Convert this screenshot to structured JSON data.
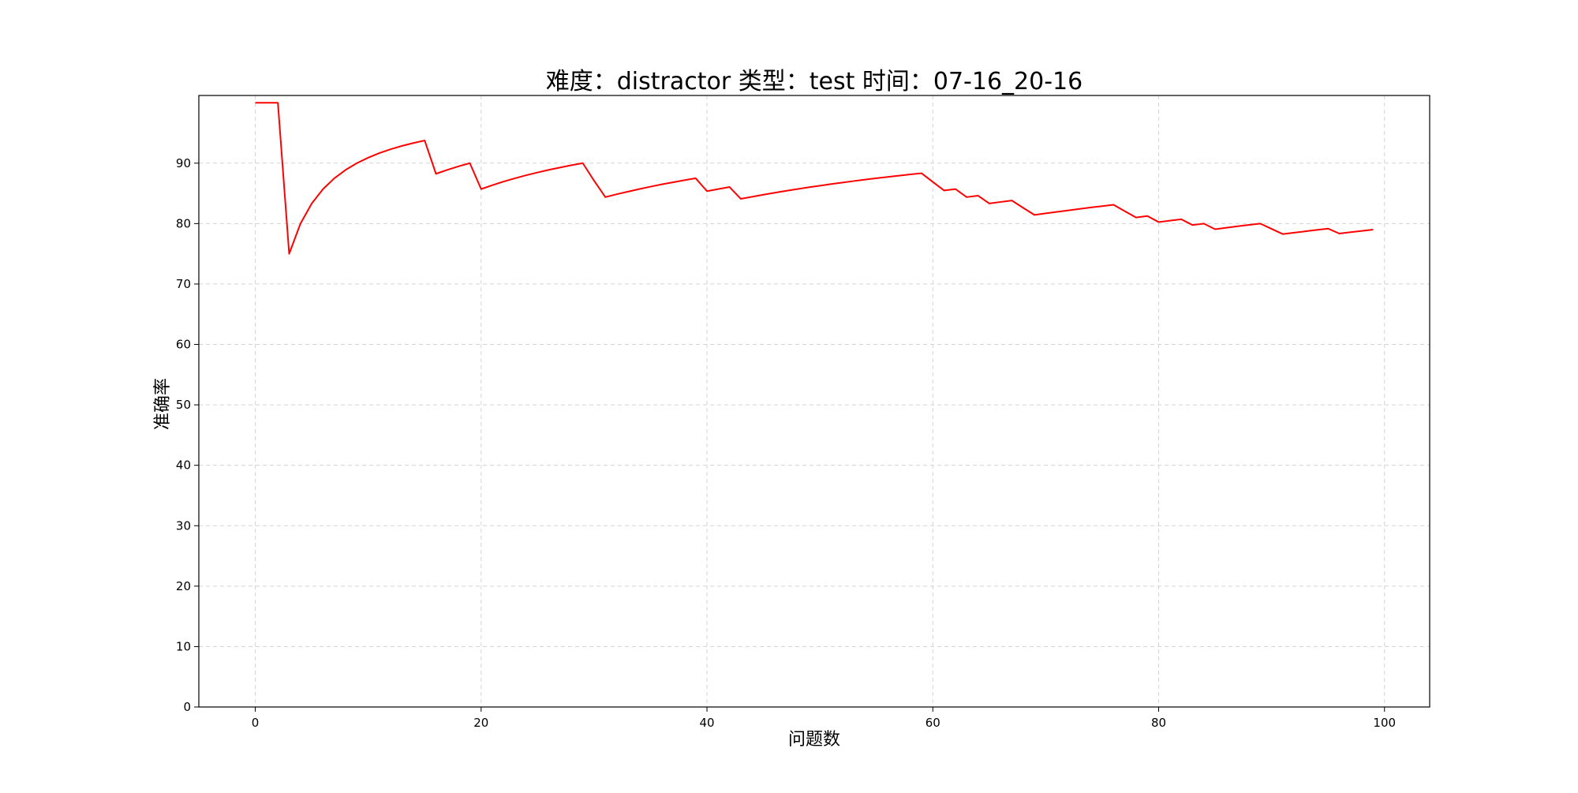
{
  "chart_data": {
    "type": "line",
    "title": "难度：distractor 类型：test 时间：07-16_20-16",
    "xlabel": "问题数",
    "ylabel": "准确率",
    "xlim": [
      -5,
      104
    ],
    "ylim": [
      0,
      101.2
    ],
    "xticks": [
      0,
      20,
      40,
      60,
      80,
      100
    ],
    "yticks": [
      0,
      10,
      20,
      30,
      40,
      50,
      60,
      70,
      80,
      90
    ],
    "grid": true,
    "colors": {
      "line": "#ff0000",
      "grid": "#d3d3d3",
      "axes": "#000000"
    },
    "series": [
      {
        "x": [
          0,
          1,
          2,
          3,
          4,
          5,
          6,
          7,
          8,
          9,
          10,
          11,
          12,
          13,
          14,
          15,
          16,
          17,
          18,
          19,
          20,
          21,
          22,
          23,
          24,
          25,
          26,
          27,
          28,
          29,
          30,
          31,
          32,
          33,
          34,
          35,
          36,
          37,
          38,
          39,
          40,
          41,
          42,
          43,
          44,
          45,
          46,
          47,
          48,
          49,
          50,
          51,
          52,
          53,
          54,
          55,
          56,
          57,
          58,
          59,
          60,
          61,
          62,
          63,
          64,
          65,
          66,
          67,
          68,
          69,
          70,
          71,
          72,
          73,
          74,
          75,
          76,
          77,
          78,
          79,
          80,
          81,
          82,
          83,
          84,
          85,
          86,
          87,
          88,
          89,
          90,
          91,
          92,
          93,
          94,
          95,
          96,
          97,
          98,
          99
        ],
        "values": [
          100.0,
          100.0,
          100.0,
          75.0,
          80.0,
          83.33,
          85.71,
          87.5,
          88.89,
          90.0,
          90.91,
          91.67,
          92.31,
          92.86,
          93.33,
          93.75,
          88.24,
          88.89,
          89.47,
          90.0,
          85.71,
          86.36,
          86.96,
          87.5,
          88.0,
          88.46,
          88.89,
          89.29,
          89.66,
          90.0,
          87.1,
          84.38,
          84.85,
          85.29,
          85.71,
          86.11,
          86.49,
          86.84,
          87.18,
          87.5,
          85.37,
          85.71,
          86.05,
          84.09,
          84.44,
          84.78,
          85.11,
          85.42,
          85.71,
          86.0,
          86.27,
          86.54,
          86.79,
          87.04,
          87.27,
          87.5,
          87.72,
          87.93,
          88.14,
          88.33,
          86.89,
          85.48,
          85.71,
          84.38,
          84.62,
          83.33,
          83.58,
          83.82,
          82.61,
          81.43,
          81.69,
          81.94,
          82.19,
          82.43,
          82.67,
          82.89,
          83.12,
          82.05,
          81.01,
          81.25,
          80.25,
          80.49,
          80.72,
          79.76,
          80.0,
          79.07,
          79.31,
          79.55,
          79.78,
          80.0,
          79.12,
          78.26,
          78.49,
          78.72,
          78.95,
          79.17,
          78.35,
          78.57,
          78.79,
          79.0
        ]
      }
    ]
  }
}
